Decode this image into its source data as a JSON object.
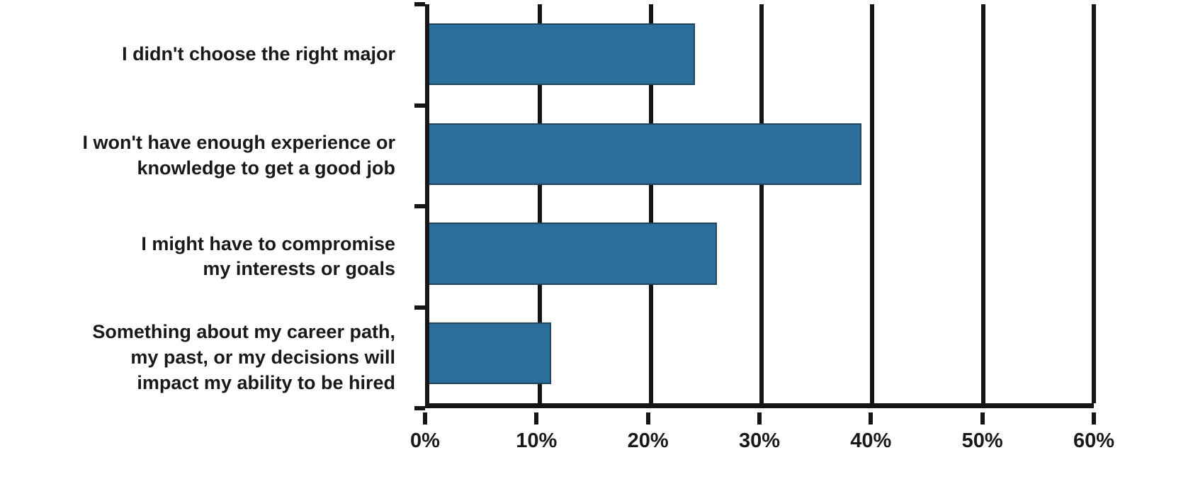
{
  "chart_data": {
    "type": "bar",
    "orientation": "horizontal",
    "categories": [
      "I didn't choose the right major",
      "I won't have enough experience or\nknowledge to get a good job",
      "I might have to compromise\nmy interests or goals",
      "Something about my career path,\nmy past, or my decisions will\nimpact my ability to be hired"
    ],
    "values": [
      24,
      39,
      26,
      11
    ],
    "xlabel": "",
    "ylabel": "",
    "xlim": [
      0,
      60
    ],
    "x_ticks": [
      0,
      10,
      20,
      30,
      40,
      50,
      60
    ],
    "x_tick_labels": [
      "0%",
      "10%",
      "20%",
      "30%",
      "40%",
      "50%",
      "60%"
    ],
    "grid": "vertical",
    "legend": "none",
    "bar_color": "#2b6e9c",
    "axis_color": "#151515",
    "text_color": "#191919"
  }
}
